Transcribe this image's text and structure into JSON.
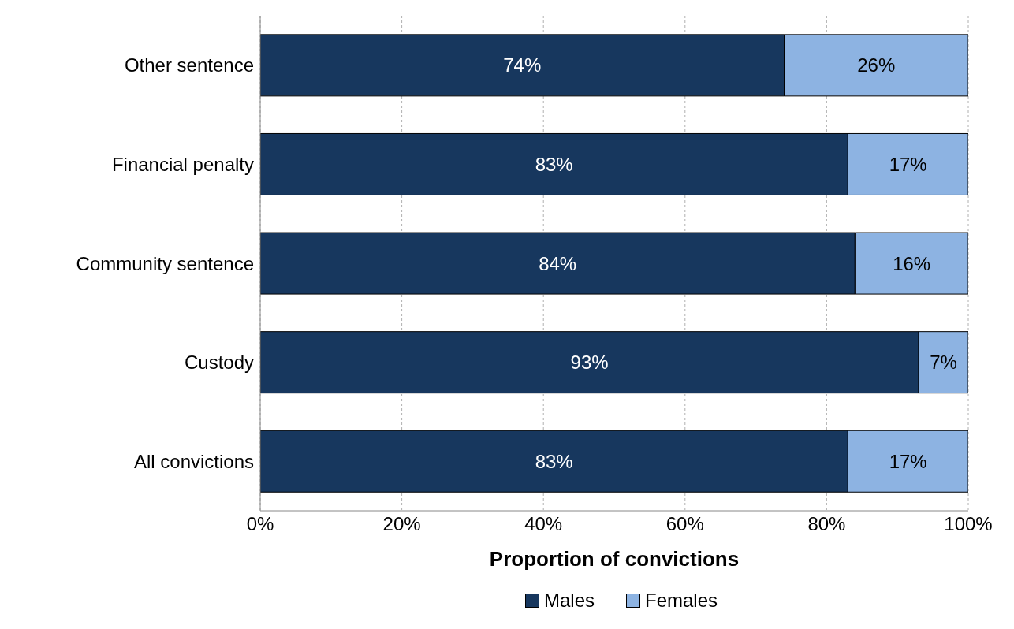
{
  "chart_data": {
    "type": "bar",
    "orientation": "horizontal",
    "stacked": true,
    "categories": [
      "Other sentence",
      "Financial penalty",
      "Community sentence",
      "Custody",
      "All convictions"
    ],
    "series": [
      {
        "name": "Males",
        "color": "#17375e",
        "values": [
          74,
          83,
          84,
          93,
          83
        ],
        "value_labels": [
          "74%",
          "83%",
          "84%",
          "93%",
          "83%"
        ]
      },
      {
        "name": "Females",
        "color": "#8db3e2",
        "values": [
          26,
          17,
          16,
          7,
          17
        ],
        "value_labels": [
          "26%",
          "17%",
          "16%",
          "7%",
          "17%"
        ]
      }
    ],
    "xlim": [
      0,
      100
    ],
    "xticks": [
      {
        "value": 0,
        "label": "0%"
      },
      {
        "value": 20,
        "label": "20%"
      },
      {
        "value": 40,
        "label": "40%"
      },
      {
        "value": 60,
        "label": "60%"
      },
      {
        "value": 80,
        "label": "80%"
      },
      {
        "value": 100,
        "label": "100%"
      }
    ],
    "xlabel": "Proportion of convictions",
    "grid": "x",
    "legend": "bottom"
  }
}
